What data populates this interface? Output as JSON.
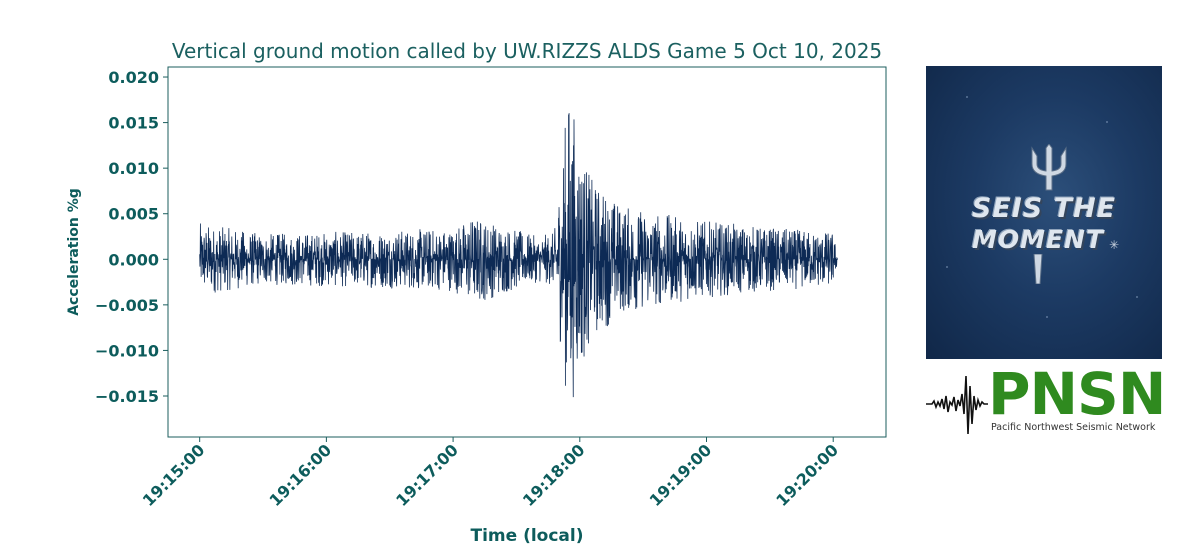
{
  "chart_data": {
    "type": "line",
    "title": "Vertical ground motion called by UW.RIZZS   ALDS Game 5 Oct 10, 2025",
    "xlabel": "Time (local)",
    "ylabel": "Acceleration %g",
    "x_ticks": [
      "19:15:00",
      "19:16:00",
      "19:17:00",
      "19:18:00",
      "19:19:00",
      "19:20:00"
    ],
    "y_ticks": [
      "0.020",
      "0.015",
      "0.010",
      "0.005",
      "0.000",
      "−0.005",
      "−0.010",
      "−0.015"
    ],
    "y_tick_values": [
      0.02,
      0.015,
      0.01,
      0.005,
      0.0,
      -0.005,
      -0.01,
      -0.015
    ],
    "xlim_seconds_after_19_15_00": [
      -15,
      325
    ],
    "ylim": [
      -0.0195,
      0.0211
    ],
    "grid": false,
    "series": [
      {
        "color": "#0d2a55",
        "start": "19:15:00",
        "end": "19:20:02",
        "envelope_time": [
          "19:15:00",
          "19:15:30",
          "19:16:00",
          "19:16:30",
          "19:17:00",
          "19:17:10",
          "19:17:40",
          "19:17:48",
          "19:17:52",
          "19:17:55",
          "19:17:58",
          "19:18:05",
          "19:18:20",
          "19:18:40",
          "19:19:00",
          "19:19:30",
          "19:20:00",
          "19:20:02"
        ],
        "envelope_max": [
          0.004,
          0.0028,
          0.003,
          0.0032,
          0.0035,
          0.0048,
          0.0025,
          0.003,
          0.013,
          0.0192,
          0.0155,
          0.009,
          0.006,
          0.005,
          0.0042,
          0.0035,
          0.003,
          0.0005
        ],
        "envelope_min": [
          -0.004,
          -0.0028,
          -0.003,
          -0.0032,
          -0.0035,
          -0.005,
          -0.0025,
          -0.003,
          -0.012,
          -0.0175,
          -0.014,
          -0.009,
          -0.006,
          -0.005,
          -0.0042,
          -0.0035,
          -0.003,
          -0.0005
        ]
      }
    ]
  },
  "promo": {
    "line1": "SEIS THE",
    "line2": "MOMENT"
  },
  "logo": {
    "name": "PNSN",
    "subtitle": "Pacific Northwest Seismic Network",
    "color": "#2f8a1f"
  },
  "colors": {
    "text": "#0d5c5c",
    "axes": "#1b5e5e",
    "trace": "#0d2a55"
  }
}
